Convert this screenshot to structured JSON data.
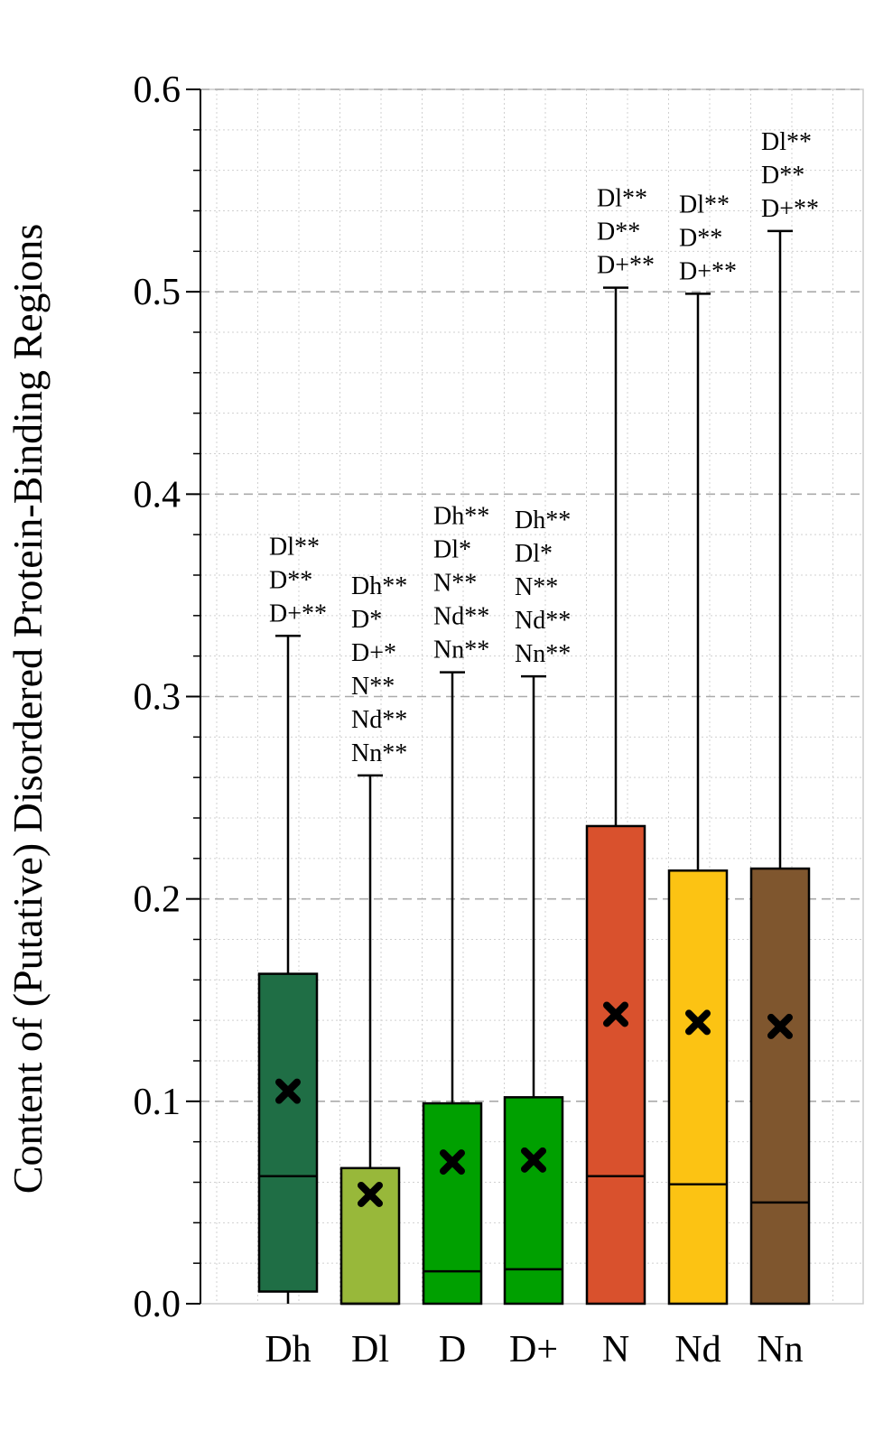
{
  "chart_data": {
    "type": "box",
    "ylabel": "Content of (Putative) Disordered Protein-Binding Regions",
    "xlabel": "",
    "ylim": [
      0,
      0.6
    ],
    "yticks": [
      "0.0",
      "0.1",
      "0.2",
      "0.3",
      "0.4",
      "0.5",
      "0.6"
    ],
    "grid": true,
    "categories": [
      "Dh",
      "Dl",
      "D",
      "D+",
      "N",
      "Nd",
      "Nn"
    ],
    "boxes": [
      {
        "name": "Dh",
        "color": "#1f6e45",
        "whislo": 0.0,
        "q1": 0.006,
        "median": 0.063,
        "q3": 0.163,
        "whishi": 0.33,
        "mean": 0.105,
        "annotations": [
          "Dl**",
          "D**",
          "D+**"
        ]
      },
      {
        "name": "Dl",
        "color": "#98b83a",
        "whislo": 0.0,
        "q1": 0.0,
        "median": 0.0,
        "q3": 0.067,
        "whishi": 0.261,
        "mean": 0.054,
        "annotations": [
          "Dh**",
          "D*",
          "D+*",
          "N**",
          "Nd**",
          "Nn**"
        ]
      },
      {
        "name": "D",
        "color": "#00a000",
        "whislo": 0.0,
        "q1": 0.0,
        "median": 0.016,
        "q3": 0.099,
        "whishi": 0.312,
        "mean": 0.07,
        "annotations": [
          "Dh**",
          "Dl*",
          "N**",
          "Nd**",
          "Nn**"
        ]
      },
      {
        "name": "D+",
        "color": "#00a000",
        "whislo": 0.0,
        "q1": 0.0,
        "median": 0.017,
        "q3": 0.102,
        "whishi": 0.31,
        "mean": 0.071,
        "annotations": [
          "Dh**",
          "Dl*",
          "N**",
          "Nd**",
          "Nn**"
        ]
      },
      {
        "name": "N",
        "color": "#d9512d",
        "whislo": 0.0,
        "q1": 0.0,
        "median": 0.063,
        "q3": 0.236,
        "whishi": 0.502,
        "mean": 0.143,
        "annotations": [
          "Dl**",
          "D**",
          "D+**"
        ]
      },
      {
        "name": "Nd",
        "color": "#fcc313",
        "whislo": 0.0,
        "q1": 0.0,
        "median": 0.059,
        "q3": 0.214,
        "whishi": 0.499,
        "mean": 0.139,
        "annotations": [
          "Dl**",
          "D**",
          "D+**"
        ]
      },
      {
        "name": "Nn",
        "color": "#7f562e",
        "whislo": 0.0,
        "q1": 0.0,
        "median": 0.05,
        "q3": 0.215,
        "whishi": 0.53,
        "mean": 0.137,
        "annotations": [
          "Dl**",
          "D**",
          "D+**"
        ]
      }
    ]
  }
}
